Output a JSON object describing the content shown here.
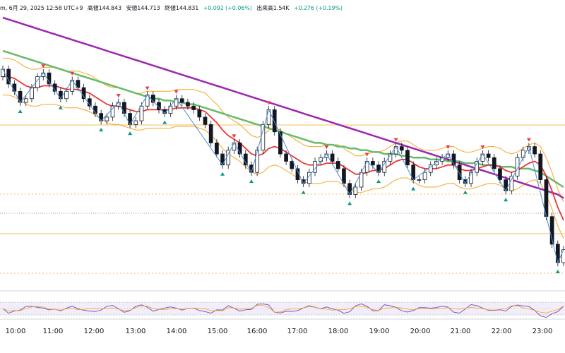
{
  "header": {
    "symbol_fragment": "m, 6月 29, 2025 12:58 UTC+9",
    "high": "高値144.843",
    "low": "安値144.713",
    "close": "終値144.831",
    "change": "+0.092 (+0.06%)",
    "volume": "出来高1.54K",
    "day_change": "+0.276 (+0.19%)"
  },
  "chart_data": {
    "type": "candlestick",
    "x_ticks": [
      "10:00",
      "11:00",
      "12:00",
      "13:00",
      "14:00",
      "15:00",
      "16:00",
      "17:00",
      "18:00",
      "19:00",
      "20:00",
      "21:00",
      "22:00",
      "23:00"
    ],
    "close": [
      144.9,
      144.82,
      144.78,
      144.72,
      144.74,
      144.8,
      144.86,
      144.88,
      144.82,
      144.78,
      144.74,
      144.78,
      144.84,
      144.8,
      144.74,
      144.7,
      144.66,
      144.62,
      144.64,
      144.7,
      144.72,
      144.66,
      144.6,
      144.62,
      144.7,
      144.76,
      144.72,
      144.68,
      144.66,
      144.7,
      144.74,
      144.72,
      144.7,
      144.68,
      144.64,
      144.6,
      144.5,
      144.44,
      144.38,
      144.46,
      144.5,
      144.44,
      144.38,
      144.34,
      144.46,
      144.6,
      144.68,
      144.56,
      144.44,
      144.4,
      144.36,
      144.3,
      144.28,
      144.34,
      144.4,
      144.42,
      144.44,
      144.4,
      144.36,
      144.28,
      144.22,
      144.26,
      144.34,
      144.4,
      144.38,
      144.34,
      144.4,
      144.44,
      144.48,
      144.46,
      144.38,
      144.3,
      144.3,
      144.34,
      144.38,
      144.4,
      144.42,
      144.44,
      144.38,
      144.3,
      144.28,
      144.34,
      144.4,
      144.44,
      144.42,
      144.36,
      144.3,
      144.24,
      144.32,
      144.42,
      144.46,
      144.48,
      144.44,
      144.3,
      144.1,
      143.95,
      143.85,
      143.92
    ],
    "open": [
      144.86,
      144.9,
      144.82,
      144.78,
      144.72,
      144.74,
      144.8,
      144.86,
      144.88,
      144.82,
      144.78,
      144.74,
      144.78,
      144.84,
      144.8,
      144.74,
      144.7,
      144.66,
      144.62,
      144.64,
      144.7,
      144.72,
      144.66,
      144.6,
      144.62,
      144.7,
      144.76,
      144.72,
      144.68,
      144.66,
      144.7,
      144.74,
      144.72,
      144.7,
      144.68,
      144.64,
      144.6,
      144.5,
      144.44,
      144.38,
      144.46,
      144.5,
      144.44,
      144.38,
      144.34,
      144.46,
      144.6,
      144.68,
      144.56,
      144.44,
      144.4,
      144.36,
      144.3,
      144.28,
      144.34,
      144.4,
      144.42,
      144.44,
      144.4,
      144.36,
      144.28,
      144.22,
      144.26,
      144.34,
      144.4,
      144.38,
      144.34,
      144.4,
      144.44,
      144.48,
      144.46,
      144.38,
      144.3,
      144.3,
      144.34,
      144.38,
      144.4,
      144.42,
      144.44,
      144.38,
      144.3,
      144.28,
      144.34,
      144.4,
      144.44,
      144.42,
      144.36,
      144.3,
      144.24,
      144.32,
      144.42,
      144.46,
      144.48,
      144.44,
      144.3,
      144.1,
      143.95,
      143.85
    ],
    "ma_purple": [
      145.18,
      145.17,
      145.16,
      145.15,
      145.14,
      145.13,
      145.12,
      145.11,
      145.1,
      145.09,
      145.08,
      145.07,
      145.06,
      145.05,
      145.04,
      145.03,
      145.02,
      145.01,
      145.0,
      144.99,
      144.98,
      144.97,
      144.96,
      144.95,
      144.94,
      144.93,
      144.92,
      144.91,
      144.9,
      144.89,
      144.88,
      144.87,
      144.86,
      144.85,
      144.84,
      144.83,
      144.82,
      144.81,
      144.8,
      144.79,
      144.78,
      144.77,
      144.76,
      144.75,
      144.74,
      144.73,
      144.72,
      144.71,
      144.7,
      144.69,
      144.68,
      144.67,
      144.66,
      144.65,
      144.64,
      144.63,
      144.62,
      144.61,
      144.6,
      144.59,
      144.58,
      144.57,
      144.56,
      144.55,
      144.54,
      144.53,
      144.52,
      144.51,
      144.5,
      144.49,
      144.48,
      144.47,
      144.46,
      144.45,
      144.44,
      144.43,
      144.42,
      144.41,
      144.4,
      144.39,
      144.38,
      144.37,
      144.36,
      144.35,
      144.34,
      144.33,
      144.32,
      144.31,
      144.3,
      144.29,
      144.28,
      144.27,
      144.26,
      144.25,
      144.24,
      144.23,
      144.22,
      144.2
    ],
    "ma_green": [
      145.0,
      144.99,
      144.98,
      144.97,
      144.96,
      144.95,
      144.94,
      144.93,
      144.92,
      144.91,
      144.9,
      144.89,
      144.88,
      144.87,
      144.86,
      144.85,
      144.84,
      144.83,
      144.82,
      144.81,
      144.8,
      144.79,
      144.78,
      144.77,
      144.76,
      144.75,
      144.74,
      144.74,
      144.73,
      144.73,
      144.72,
      144.72,
      144.71,
      144.71,
      144.7,
      144.69,
      144.68,
      144.67,
      144.66,
      144.65,
      144.64,
      144.63,
      144.62,
      144.61,
      144.6,
      144.59,
      144.58,
      144.57,
      144.56,
      144.55,
      144.54,
      144.53,
      144.52,
      144.51,
      144.5,
      144.5,
      144.49,
      144.49,
      144.48,
      144.48,
      144.47,
      144.47,
      144.46,
      144.46,
      144.45,
      144.45,
      144.44,
      144.44,
      144.44,
      144.43,
      144.43,
      144.42,
      144.42,
      144.42,
      144.41,
      144.41,
      144.41,
      144.4,
      144.4,
      144.4,
      144.39,
      144.39,
      144.39,
      144.38,
      144.38,
      144.38,
      144.37,
      144.37,
      144.37,
      144.36,
      144.36,
      144.36,
      144.35,
      144.34,
      144.32,
      144.3,
      144.28,
      144.26
    ],
    "ma_red": [
      144.86,
      144.86,
      144.85,
      144.83,
      144.81,
      144.8,
      144.8,
      144.81,
      144.81,
      144.81,
      144.8,
      144.79,
      144.79,
      144.79,
      144.78,
      144.77,
      144.75,
      144.73,
      144.71,
      144.7,
      144.7,
      144.69,
      144.68,
      144.67,
      144.67,
      144.68,
      144.68,
      144.68,
      144.68,
      144.68,
      144.69,
      144.69,
      144.69,
      144.69,
      144.68,
      144.67,
      144.64,
      144.61,
      144.57,
      144.54,
      144.52,
      144.5,
      144.47,
      144.44,
      144.43,
      144.44,
      144.47,
      144.48,
      144.47,
      144.45,
      144.43,
      144.41,
      144.39,
      144.38,
      144.38,
      144.38,
      144.39,
      144.39,
      144.39,
      144.37,
      144.35,
      144.33,
      144.33,
      144.34,
      144.35,
      144.35,
      144.36,
      144.38,
      144.4,
      144.41,
      144.41,
      144.39,
      144.37,
      144.36,
      144.36,
      144.36,
      144.37,
      144.38,
      144.38,
      144.36,
      144.35,
      144.35,
      144.36,
      144.37,
      144.38,
      144.38,
      144.37,
      144.35,
      144.34,
      144.35,
      144.37,
      144.39,
      144.4,
      144.38,
      144.32,
      144.24,
      144.15,
      144.08
    ]
  }
}
